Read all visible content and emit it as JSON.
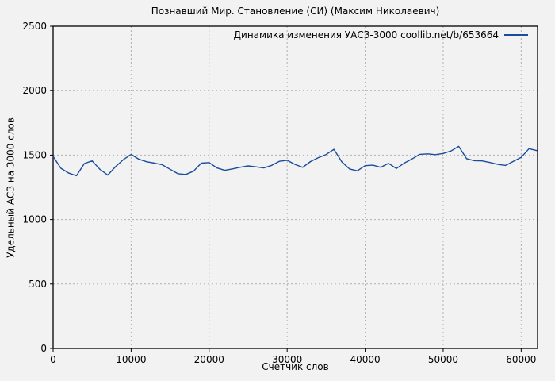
{
  "window": {
    "background": "#f2f2f2"
  },
  "colors": {
    "background": "#f2f2f2",
    "grid": "#b0b0b0",
    "axis": "#000000",
    "text": "#000000",
    "line": "#1a4c9c"
  },
  "chart_data": {
    "type": "line",
    "title": "Познавший Мир. Становление (СИ) (Максим Николаевич)",
    "xlabel": "Счетчик слов",
    "ylabel": "Удельный АСЗ на 3000 слов",
    "xlim": [
      0,
      62100
    ],
    "ylim": [
      0,
      2500
    ],
    "xticks": [
      0,
      10000,
      20000,
      30000,
      40000,
      50000,
      60000
    ],
    "yticks": [
      0,
      500,
      1000,
      1500,
      2000,
      2500
    ],
    "grid": true,
    "grid_style": "dashed",
    "legend_position": "top-right-inside",
    "series": [
      {
        "name": "Динамика изменения УАСЗ-3000 coollib.net/b/653664",
        "color": "#1a4c9c",
        "x": [
          0,
          1000,
          2000,
          3000,
          4000,
          5000,
          6000,
          7000,
          8000,
          9000,
          10000,
          11000,
          12000,
          13000,
          14000,
          15000,
          16000,
          17000,
          18000,
          19000,
          20000,
          21000,
          22000,
          23000,
          24000,
          25000,
          26000,
          27000,
          28000,
          29000,
          30000,
          31000,
          32000,
          33000,
          34000,
          35000,
          36000,
          37000,
          38000,
          39000,
          40000,
          41000,
          42000,
          43000,
          44000,
          45000,
          46000,
          47000,
          48000,
          49000,
          50000,
          51000,
          52000,
          53000,
          54000,
          55000,
          56000,
          57000,
          58000,
          59000,
          60000,
          61000,
          62000
        ],
        "y": [
          1490,
          1398,
          1360,
          1340,
          1435,
          1455,
          1390,
          1345,
          1410,
          1465,
          1505,
          1468,
          1448,
          1438,
          1425,
          1390,
          1355,
          1350,
          1375,
          1438,
          1442,
          1400,
          1382,
          1393,
          1406,
          1416,
          1409,
          1400,
          1420,
          1452,
          1460,
          1428,
          1405,
          1450,
          1480,
          1505,
          1545,
          1448,
          1392,
          1378,
          1418,
          1422,
          1405,
          1436,
          1396,
          1438,
          1470,
          1506,
          1510,
          1504,
          1513,
          1532,
          1568,
          1472,
          1457,
          1455,
          1443,
          1428,
          1420,
          1452,
          1482,
          1550,
          1535
        ]
      }
    ]
  }
}
